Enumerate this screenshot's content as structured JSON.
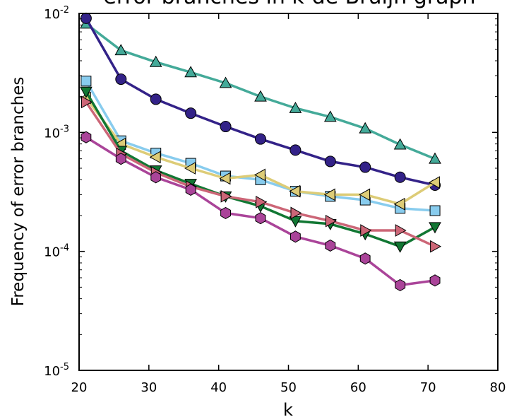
{
  "chart_data": {
    "type": "line",
    "title": "error branches in k-de Bruijn graph",
    "xlabel": "k",
    "ylabel": "Frequency of error branches",
    "xlim": [
      20,
      80
    ],
    "ylim": [
      1e-05,
      0.01
    ],
    "yscale": "log",
    "grid": false,
    "x_ticks": [
      {
        "value": 20,
        "label": "20"
      },
      {
        "value": 30,
        "label": "30"
      },
      {
        "value": 40,
        "label": "40"
      },
      {
        "value": 50,
        "label": "50"
      },
      {
        "value": 60,
        "label": "60"
      },
      {
        "value": 70,
        "label": "70"
      },
      {
        "value": 80,
        "label": "80"
      }
    ],
    "y_ticks": [
      {
        "value": 1e-05,
        "base": "10",
        "exp": "-5"
      },
      {
        "value": 0.0001,
        "base": "10",
        "exp": "-4"
      },
      {
        "value": 0.001,
        "base": "10",
        "exp": "-3"
      },
      {
        "value": 0.01,
        "base": "10",
        "exp": "-2"
      }
    ],
    "x": [
      21,
      26,
      31,
      36,
      41,
      46,
      51,
      56,
      61,
      66,
      71
    ],
    "series": [
      {
        "marker": "triangle-up",
        "color": "#44aa99",
        "values": [
          0.0082,
          0.0049,
          0.0039,
          0.0032,
          0.0026,
          0.002,
          0.0016,
          0.00135,
          0.00108,
          0.00079,
          0.0006
        ]
      },
      {
        "marker": "circle",
        "color": "#332288",
        "values": [
          0.0091,
          0.0028,
          0.0019,
          0.00145,
          0.00112,
          0.00088,
          0.00071,
          0.00057,
          0.00051,
          0.00042,
          0.00036
        ]
      },
      {
        "marker": "square",
        "color": "#88ccee",
        "values": [
          0.0027,
          0.00085,
          0.00067,
          0.00055,
          0.00043,
          0.0004,
          0.00032,
          0.00029,
          0.00027,
          0.00023,
          0.00022
        ]
      },
      {
        "marker": "triangle-left",
        "color": "#ddcc77",
        "values": [
          0.00195,
          0.0008,
          0.00062,
          0.0005,
          0.00041,
          0.00044,
          0.00032,
          0.0003,
          0.0003,
          0.00025,
          0.00038
        ]
      },
      {
        "marker": "triangle-down",
        "color": "#117733",
        "values": [
          0.0022,
          0.0007,
          0.00048,
          0.00037,
          0.00029,
          0.00024,
          0.00018,
          0.00017,
          0.00014,
          0.00011,
          0.00016
        ]
      },
      {
        "marker": "triangle-right",
        "color": "#cc6677",
        "values": [
          0.0018,
          0.00066,
          0.00046,
          0.00035,
          0.00029,
          0.00026,
          0.00021,
          0.00018,
          0.00015,
          0.00015,
          0.00011
        ]
      },
      {
        "marker": "hexagon",
        "color": "#aa4499",
        "values": [
          0.00091,
          0.0006,
          0.00042,
          0.00033,
          0.00021,
          0.00019,
          0.000133,
          0.000112,
          8.7e-05,
          5.2e-05,
          5.7e-05
        ]
      }
    ]
  }
}
